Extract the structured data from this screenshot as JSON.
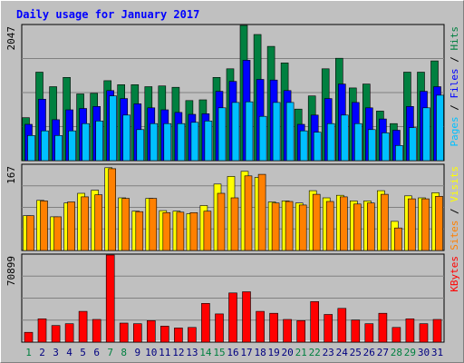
{
  "chart_data": {
    "type": "bar",
    "title": "Daily usage for January 2017",
    "days": [
      "1",
      "2",
      "3",
      "4",
      "5",
      "6",
      "7",
      "8",
      "9",
      "10",
      "11",
      "12",
      "13",
      "14",
      "15",
      "16",
      "17",
      "18",
      "19",
      "20",
      "21",
      "22",
      "23",
      "24",
      "25",
      "26",
      "27",
      "28",
      "29",
      "30",
      "31"
    ],
    "weekend_days": [
      "1",
      "7",
      "8",
      "14",
      "15",
      "21",
      "22",
      "28",
      "29"
    ],
    "panels": [
      {
        "ylabel_parts": [
          "Pages",
          "Files",
          "Hits"
        ],
        "max_label": "2047",
        "ymax": 2047,
        "series": [
          {
            "name": "Hits",
            "color": "#008040",
            "values": [
              650,
              1340,
              1120,
              1260,
              1010,
              1020,
              1210,
              1150,
              1150,
              1120,
              1130,
              1110,
              910,
              920,
              1260,
              1390,
              2047,
              1910,
              1730,
              1480,
              780,
              980,
              1390,
              1550,
              1100,
              1160,
              750,
              560,
              1340,
              1340,
              1510
            ]
          },
          {
            "name": "Files",
            "color": "#0000ff",
            "values": [
              550,
              930,
              620,
              770,
              790,
              820,
              1060,
              940,
              860,
              800,
              770,
              730,
              700,
              710,
              1050,
              1200,
              1520,
              1230,
              1220,
              1060,
              550,
              690,
              940,
              1160,
              880,
              800,
              630,
              460,
              820,
              1050,
              1120
            ]
          },
          {
            "name": "Pages",
            "color": "#00c0ff",
            "values": [
              380,
              450,
              380,
              450,
              560,
              600,
              980,
              690,
              470,
              560,
              560,
              560,
              580,
              600,
              800,
              880,
              890,
              670,
              880,
              880,
              450,
              430,
              560,
              690,
              560,
              470,
              420,
              230,
              500,
              800,
              990
            ]
          }
        ]
      },
      {
        "ylabel_parts": [
          "Sites",
          "Visits"
        ],
        "max_label": "167",
        "ymax": 167,
        "series": [
          {
            "name": "Visits",
            "color": "#ffff00",
            "values": [
              68,
              98,
              66,
              93,
              112,
              118,
              162,
              103,
              77,
              102,
              78,
              77,
              72,
              88,
              130,
              145,
              155,
              143,
              95,
              97,
              93,
              117,
              103,
              108,
              97,
              97,
              117,
              57,
              107,
              103,
              113
            ]
          },
          {
            "name": "Sites",
            "color": "#ff8000",
            "values": [
              68,
              97,
              66,
              95,
              105,
              109,
              160,
              102,
              76,
              102,
              74,
              75,
              74,
              77,
              112,
              103,
              146,
              149,
              93,
              96,
              89,
              110,
              96,
              105,
              91,
              93,
              110,
              44,
              101,
              101,
              106
            ]
          }
        ]
      },
      {
        "ylabel_parts": [
          "KBytes"
        ],
        "max_label": "70899",
        "ymax": 70899,
        "series": [
          {
            "name": "KBytes",
            "color": "#ff0000",
            "values": [
              8000,
              19000,
              13500,
              15000,
              25000,
              18500,
              70899,
              15500,
              15000,
              17500,
              13000,
              11500,
              12000,
              31500,
              23000,
              40000,
              41000,
              25000,
              23500,
              18500,
              17500,
              33000,
              22500,
              27500,
              18000,
              15000,
              23500,
              12000,
              19000,
              15000,
              18500
            ]
          }
        ]
      }
    ],
    "label_colors": {
      "Pages": "#00c0ff",
      "Files": "#0000ff",
      "Hits": "#008040",
      "Sites": "#ff8000",
      "Visits": "#ffff00",
      "KBytes": "#ff0000",
      "sep": "#000000"
    },
    "title_color": "#0000ff",
    "weekday_color": "#000080",
    "weekend_color": "#008040",
    "grid": true
  }
}
